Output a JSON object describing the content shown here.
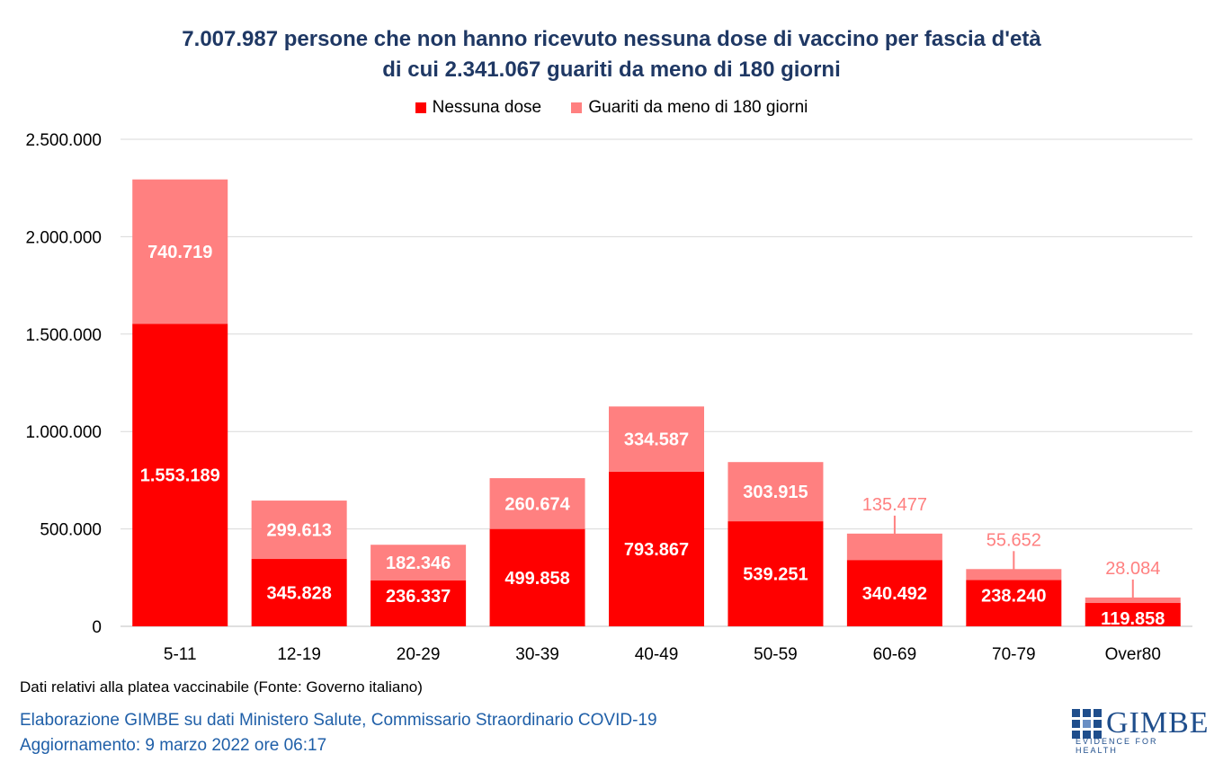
{
  "header": {
    "title_line1": "7.007.987 persone che non hanno ricevuto nessuna dose di vaccino per fascia d'età",
    "title_line2": "di cui 2.341.067 guariti da meno di 180 giorni"
  },
  "footer": {
    "note": "Dati relativi alla platea vaccinabile (Fonte: Governo italiano)",
    "credit_line1": "Elaborazione GIMBE su dati Ministero Salute, Commissario Straordinario COVID-19",
    "credit_line2": "Aggiornamento: 9 marzo 2022 ore 06:17",
    "logo_text": "GIMBE",
    "logo_tagline": "EVIDENCE FOR HEALTH"
  },
  "colors": {
    "nessuna_dose": "#ff0000",
    "guariti": "#ff8080",
    "title": "#1f3864",
    "credits": "#1f5fa8"
  },
  "chart_data": {
    "type": "bar",
    "stacked": true,
    "title": "7.007.987 persone che non hanno ricevuto nessuna dose di vaccino per fascia d'età di cui 2.341.067 guariti da meno di 180 giorni",
    "categories": [
      "5-11",
      "12-19",
      "20-29",
      "30-39",
      "40-49",
      "50-59",
      "60-69",
      "70-79",
      "Over80"
    ],
    "series": [
      {
        "name": "Nessuna dose",
        "color": "#ff0000",
        "values": [
          1553189,
          345828,
          236337,
          499858,
          793867,
          539251,
          340492,
          238240,
          119858
        ],
        "labels": [
          "1.553.189",
          "345.828",
          "236.337",
          "499.858",
          "793.867",
          "539.251",
          "340.492",
          "238.240",
          "119.858"
        ]
      },
      {
        "name": "Guariti da meno di 180 giorni",
        "color": "#ff8080",
        "values": [
          740719,
          299613,
          182346,
          260674,
          334587,
          303915,
          135477,
          55652,
          28084
        ],
        "labels": [
          "740.719",
          "299.613",
          "182.346",
          "260.674",
          "334.587",
          "303.915",
          "135.477",
          "55.652",
          "28.084"
        ]
      }
    ],
    "ylim": [
      0,
      2500000
    ],
    "yticks": [
      0,
      500000,
      1000000,
      1500000,
      2000000,
      2500000
    ],
    "ytick_labels": [
      "0",
      "500.000",
      "1.000.000",
      "1.500.000",
      "2.000.000",
      "2.500.000"
    ],
    "xlabel": "",
    "ylabel": "",
    "grid": true,
    "legend_position": "top"
  }
}
